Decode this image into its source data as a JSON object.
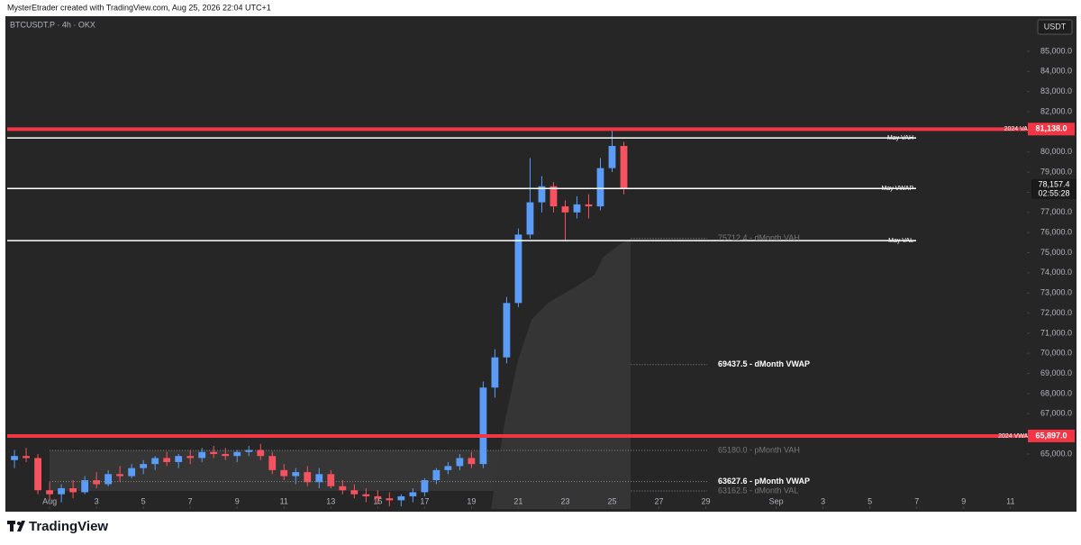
{
  "header": "MysterEtrader created with TradingView.com, Aug 25, 2026 22:04 UTC+1",
  "brand": "TradingView",
  "chart_data": {
    "type": "candlestick",
    "title": "BTCUSDT.P · 4h · OKX",
    "currency": "USDT",
    "up_color": "#5b9cf6",
    "down_color": "#f7525f",
    "x": [
      -0.5,
      0,
      0.5,
      1,
      1.5,
      2,
      2.5,
      3,
      3.5,
      4,
      4.5,
      5,
      5.5,
      6,
      6.5,
      7,
      7.5,
      8,
      8.5,
      9,
      9.5,
      10,
      10.5,
      11,
      11.5,
      12,
      12.5,
      13,
      13.5,
      14,
      14.5,
      15,
      15.5,
      16,
      16.5,
      17,
      17.5,
      18,
      18.5,
      19,
      19.5,
      20,
      20.5,
      21,
      21.5,
      22,
      22.5,
      23,
      23.5,
      24,
      24.5,
      25,
      25.5
    ],
    "open": [
      64700,
      64900,
      64800,
      63200,
      63000,
      63300,
      63100,
      63700,
      63500,
      64000,
      63900,
      64300,
      64500,
      64800,
      64600,
      64900,
      64800,
      65100,
      65000,
      64900,
      65100,
      65200,
      64900,
      64200,
      63900,
      64100,
      63600,
      64000,
      63400,
      63200,
      63000,
      62900,
      62800,
      62700,
      62900,
      63100,
      63700,
      64200,
      64400,
      64800,
      64500,
      68300,
      69800,
      72500,
      75900,
      77500,
      78300,
      77300,
      77000,
      77400,
      77300,
      79200,
      80300
    ],
    "high": [
      65200,
      65300,
      65000,
      63600,
      63500,
      63700,
      63900,
      64100,
      64200,
      64400,
      64500,
      64700,
      64900,
      65100,
      65000,
      65200,
      65300,
      65400,
      65300,
      65200,
      65400,
      65500,
      65100,
      64500,
      64300,
      64400,
      64300,
      64200,
      63700,
      63500,
      63300,
      63200,
      63100,
      63000,
      63300,
      63800,
      64300,
      64600,
      65000,
      65100,
      68600,
      70200,
      72800,
      76200,
      79700,
      78800,
      78500,
      77600,
      77800,
      77900,
      79700,
      81100,
      80500
    ],
    "low": [
      64300,
      64600,
      63000,
      62700,
      62600,
      62800,
      63000,
      63300,
      63400,
      63600,
      63800,
      64000,
      64200,
      64400,
      64300,
      64500,
      64600,
      64800,
      64700,
      64600,
      64900,
      64700,
      64000,
      63700,
      63500,
      63400,
      63300,
      63300,
      63000,
      62800,
      62600,
      62500,
      62400,
      62400,
      62600,
      62900,
      63500,
      64000,
      64200,
      64300,
      64300,
      67800,
      69500,
      72300,
      75700,
      77000,
      77000,
      75600,
      76700,
      76700,
      77100,
      79000,
      77900
    ],
    "close": [
      64900,
      64800,
      63200,
      63000,
      63300,
      63100,
      63700,
      63500,
      64000,
      63900,
      64300,
      64500,
      64800,
      64600,
      64900,
      64800,
      65100,
      65000,
      64900,
      65100,
      65200,
      64900,
      64200,
      63900,
      64100,
      63600,
      64000,
      63400,
      63200,
      63000,
      62900,
      62800,
      62700,
      62900,
      63100,
      63700,
      64200,
      64400,
      64800,
      64500,
      68300,
      69800,
      72500,
      75900,
      77500,
      78300,
      77300,
      77000,
      77400,
      77300,
      79200,
      80300,
      78157.4
    ],
    "xlim": [
      -0.81,
      42.7
    ],
    "ylim": [
      62270,
      86745
    ],
    "xticks": [
      {
        "value": 1,
        "label": "Aug"
      },
      3,
      5,
      7,
      9,
      11,
      13,
      15,
      17,
      19,
      21,
      23,
      25,
      27,
      29,
      {
        "value": 32,
        "label": "Sep"
      },
      {
        "value": 34,
        "label": "3"
      },
      {
        "value": 36,
        "label": "5"
      },
      {
        "value": 38,
        "label": "7"
      },
      {
        "value": 40,
        "label": "9"
      },
      {
        "value": 42,
        "label": "11"
      }
    ],
    "yticks": [
      {
        "value": 65000,
        "label": "65,000.0"
      },
      {
        "value": 66000,
        "label": "66,000.0"
      },
      {
        "value": 67000,
        "label": "67,000.0"
      },
      {
        "value": 68000,
        "label": "68,000.0"
      },
      {
        "value": 69000,
        "label": "69,000.0"
      },
      {
        "value": 70000,
        "label": "70,000.0"
      },
      {
        "value": 71000,
        "label": "71,000.0"
      },
      {
        "value": 72000,
        "label": "72,000.0"
      },
      {
        "value": 73000,
        "label": "73,000.0"
      },
      {
        "value": 74000,
        "label": "74,000.0"
      },
      {
        "value": 75000,
        "label": "75,000.0"
      },
      {
        "value": 76000,
        "label": "76,000.0"
      },
      {
        "value": 77000,
        "label": "77,000.0"
      },
      {
        "value": 78000,
        "label": "78,000.0"
      },
      {
        "value": 79000,
        "label": "79,000.0"
      },
      {
        "value": 80000,
        "label": "80,000.0"
      },
      {
        "value": 81000,
        "label": "81,000.0"
      },
      {
        "value": 82000,
        "label": "82,000.0"
      },
      {
        "value": 83000,
        "label": "83,000.0"
      },
      {
        "value": 84000,
        "label": "84,000.0"
      },
      {
        "value": 85000,
        "label": "85,000.0"
      }
    ],
    "levels": [
      {
        "label": "2024 VAH",
        "value": 81138.0,
        "value_label": "81,138.0",
        "color": "#f23645",
        "style": "solid"
      },
      {
        "label": "May VAH",
        "value": 80700,
        "color": "#ffffff",
        "style": "solid"
      },
      {
        "label": "May VWAP",
        "value": 78190,
        "color": "#ffffff",
        "style": "solid"
      },
      {
        "label": "May VAL",
        "value": 75600,
        "color": "#ffffff",
        "style": "solid"
      },
      {
        "label": "2024 VWAP",
        "value": 65897.0,
        "value_label": "65,897.0",
        "color": "#f23645",
        "style": "solid"
      },
      {
        "label": "75712.4 - dMonth VAH",
        "value": 75712.4,
        "color": "#777777",
        "style": "dotted"
      },
      {
        "label": "69437.5 - dMonth VWAP",
        "value": 69437.5,
        "color": "#ffffff",
        "style": "dotted"
      },
      {
        "label": "65180.0 - pMonth VAH",
        "value": 65180.0,
        "color": "#777777",
        "style": "dotted"
      },
      {
        "label": "63627.6 - pMonth VWAP",
        "value": 63627.6,
        "color": "#ffffff",
        "style": "dotted"
      },
      {
        "label": "63162.5 - dMonth VAL",
        "value": 63162.5,
        "color": "#777777",
        "style": "dotted"
      }
    ],
    "last_price": {
      "value": 78157.4,
      "label": "78,157.4",
      "countdown": "02:55:28"
    }
  }
}
